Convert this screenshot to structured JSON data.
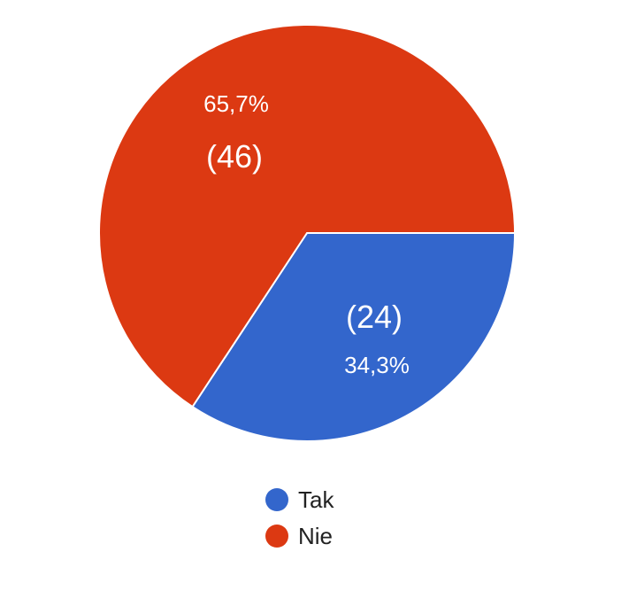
{
  "chart_data": {
    "type": "pie",
    "slices": [
      {
        "name": "Tak",
        "value": 24,
        "percent": "34,3%",
        "count_label": "(24)",
        "color": "#3366cc"
      },
      {
        "name": "Nie",
        "value": 46,
        "percent": "65,7%",
        "count_label": "(46)",
        "color": "#dc3912"
      }
    ],
    "legend": {
      "position": "bottom",
      "items": [
        "Tak",
        "Nie"
      ]
    },
    "start_angle": "3 o'clock",
    "direction": "clockwise"
  }
}
